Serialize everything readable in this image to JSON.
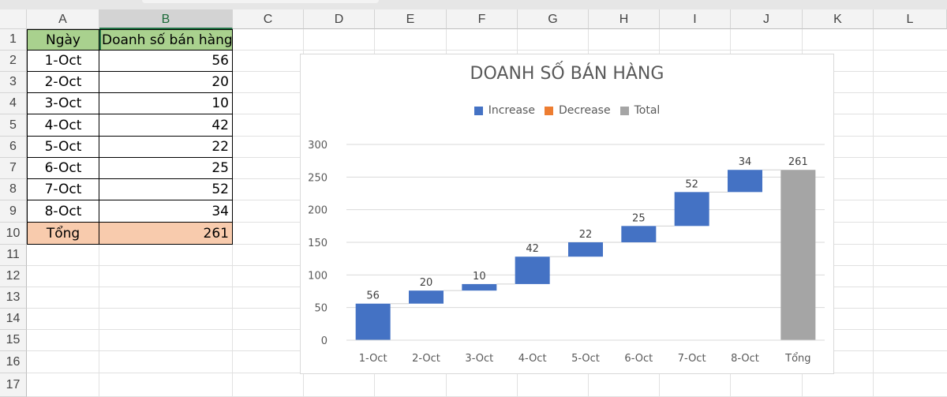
{
  "spreadsheet": {
    "columns": [
      "A",
      "B",
      "C",
      "D",
      "E",
      "F",
      "G",
      "H",
      "I",
      "J",
      "K",
      "L"
    ],
    "rows": [
      "1",
      "2",
      "3",
      "4",
      "5",
      "6",
      "7",
      "8",
      "9",
      "10",
      "11",
      "12",
      "13",
      "14",
      "15",
      "16",
      "17"
    ],
    "header": {
      "date": "Ngày",
      "sales": "Doanh số bán hàng"
    },
    "records": [
      {
        "date": "1-Oct",
        "value": "56"
      },
      {
        "date": "2-Oct",
        "value": "20"
      },
      {
        "date": "3-Oct",
        "value": "10"
      },
      {
        "date": "4-Oct",
        "value": "42"
      },
      {
        "date": "5-Oct",
        "value": "22"
      },
      {
        "date": "6-Oct",
        "value": "25"
      },
      {
        "date": "7-Oct",
        "value": "52"
      },
      {
        "date": "8-Oct",
        "value": "34"
      }
    ],
    "total": {
      "label": "Tổng",
      "value": "261"
    },
    "colors": {
      "header_fill": "#a9d18e",
      "total_fill": "#f8cbad",
      "selected_column": "#217346"
    }
  },
  "chart_data": {
    "type": "bar",
    "subtype": "waterfall",
    "title": "DOANH SỐ BÁN HÀNG",
    "legend": [
      "Increase",
      "Decrease",
      "Total"
    ],
    "legend_colors": [
      "#4472c4",
      "#ed7d31",
      "#a5a5a5"
    ],
    "legend_position": "top",
    "categories": [
      "1-Oct",
      "2-Oct",
      "3-Oct",
      "4-Oct",
      "5-Oct",
      "6-Oct",
      "7-Oct",
      "8-Oct",
      "Tổng"
    ],
    "values": [
      56,
      20,
      10,
      42,
      22,
      25,
      52,
      34,
      261
    ],
    "kinds": [
      "increase",
      "increase",
      "increase",
      "increase",
      "increase",
      "increase",
      "increase",
      "increase",
      "total"
    ],
    "ylim": [
      0,
      300
    ],
    "yticks": [
      "0",
      "50",
      "100",
      "150",
      "200",
      "250",
      "300"
    ],
    "grid": true,
    "xlabel": "",
    "ylabel": ""
  }
}
